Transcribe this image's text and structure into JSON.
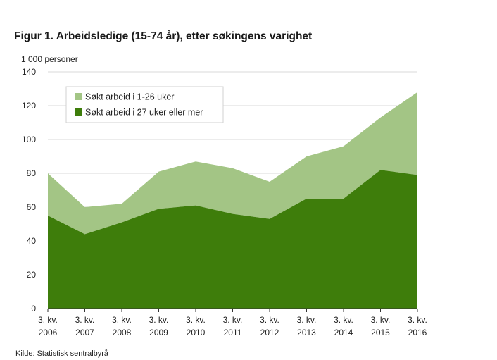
{
  "chart_data": {
    "type": "area",
    "stacked": true,
    "title": "Figur 1. Arbeidsledige (15-74 år), etter søkingens varighet",
    "ylabel": "1 000 personer",
    "xlabel": "",
    "source": "Kilde: Statistisk sentralbyrå",
    "ylim": [
      0,
      140
    ],
    "yticks": [
      "0",
      "20",
      "40",
      "60",
      "80",
      "100",
      "120",
      "140"
    ],
    "categories": [
      [
        "3. kv.",
        "2006"
      ],
      [
        "3. kv.",
        "2007"
      ],
      [
        "3. kv.",
        "2008"
      ],
      [
        "3. kv.",
        "2009"
      ],
      [
        "3. kv.",
        "2010"
      ],
      [
        "3. kv.",
        "2011"
      ],
      [
        "3. kv.",
        "2012"
      ],
      [
        "3. kv.",
        "2013"
      ],
      [
        "3. kv.",
        "2014"
      ],
      [
        "3. kv.",
        "2015"
      ],
      [
        "3. kv.",
        "2016"
      ]
    ],
    "series": [
      {
        "name": "Søkt arbeid i 27 uker eller mer",
        "color": "#3e7d0b",
        "values": [
          55,
          44,
          51,
          59,
          61,
          56,
          53,
          65,
          65,
          82,
          79
        ]
      },
      {
        "name": "Søkt arbeid i 1-26 uker",
        "color": "#a3c585",
        "values": [
          25,
          16,
          11,
          22,
          26,
          27,
          22,
          25,
          31,
          31,
          49
        ]
      }
    ],
    "grid": true,
    "legend": "top-left"
  }
}
